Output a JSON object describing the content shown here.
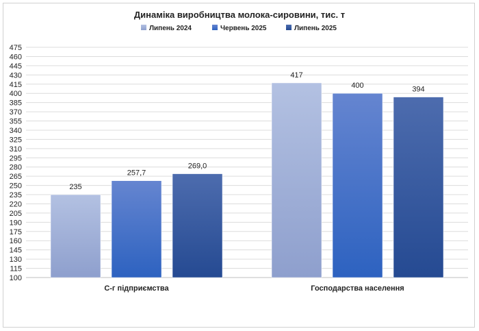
{
  "chart_data": {
    "type": "bar",
    "title": "Динаміка виробництва молока-сировини, тис. т",
    "categories": [
      "С-г підприємства",
      "Господарства населення"
    ],
    "series": [
      {
        "name": "Липень 2024",
        "values": [
          235,
          417
        ],
        "labels": [
          "235",
          "417"
        ],
        "color_top": "#b3c1e2",
        "color_bottom": "#8e9fcd"
      },
      {
        "name": "Червень 2025",
        "values": [
          257.7,
          400
        ],
        "labels": [
          "257,7",
          "400"
        ],
        "color_top": "#6585d0",
        "color_bottom": "#2d62c0"
      },
      {
        "name": "Липень 2025",
        "values": [
          269.0,
          394
        ],
        "labels": [
          "269,0",
          "394"
        ],
        "color_top": "#4d6cae",
        "color_bottom": "#254a92"
      }
    ],
    "ylim": [
      100,
      475
    ],
    "ytick_step": 15,
    "grid": true,
    "legend_position": "top"
  }
}
